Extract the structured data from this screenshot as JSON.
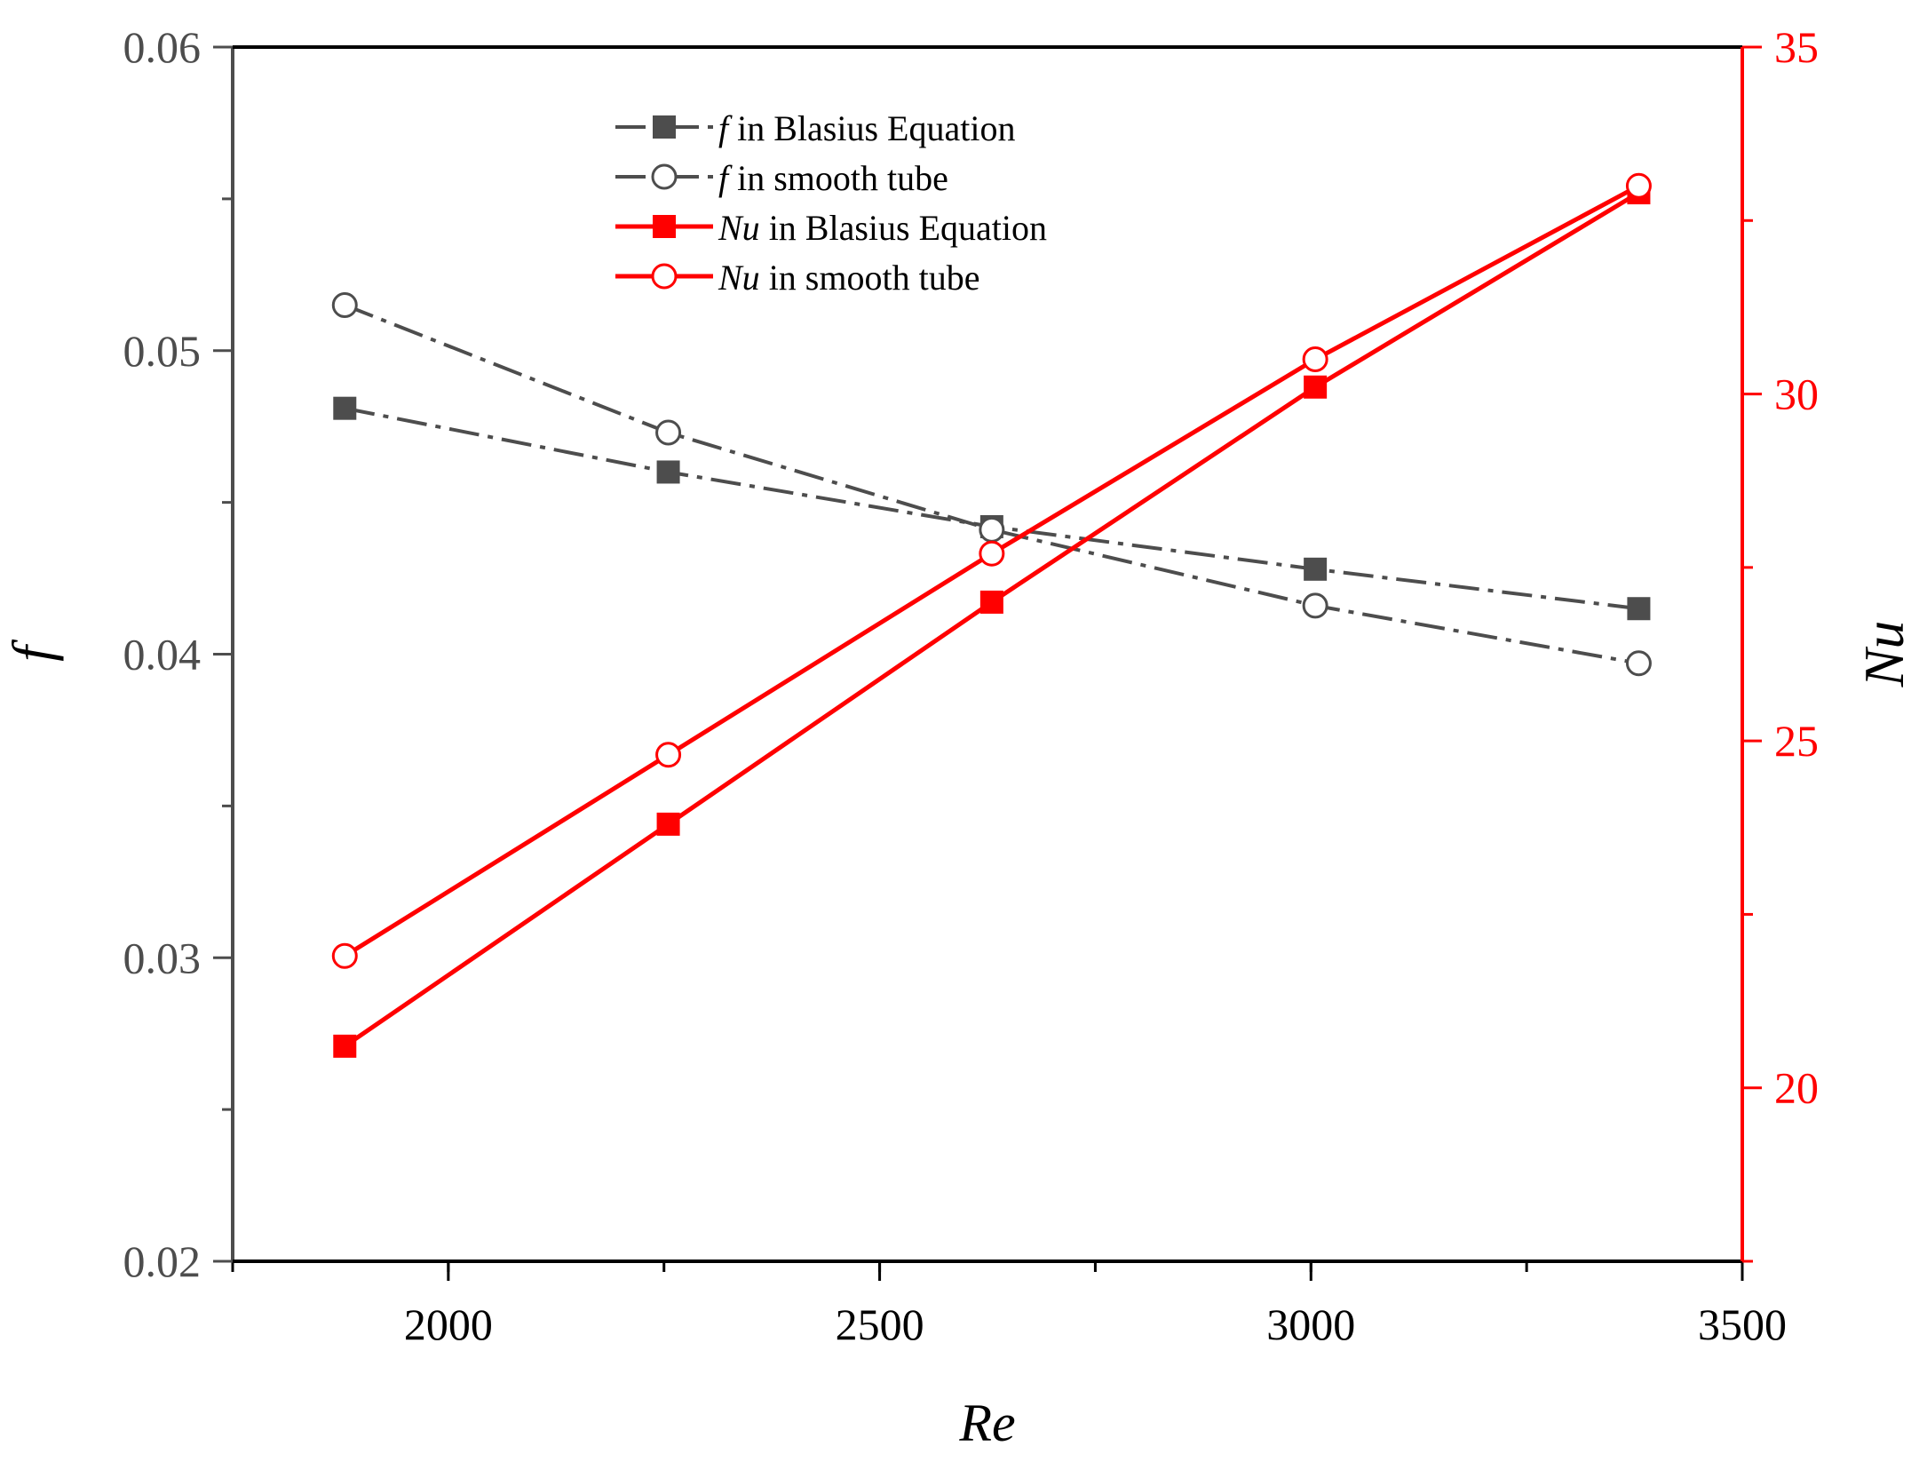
{
  "chart_data": {
    "type": "line",
    "title": "",
    "xlabel": "Re",
    "ylabel_left": "f",
    "ylabel_right": "Nu",
    "x": [
      1880,
      2255,
      2630,
      3005,
      3380
    ],
    "xlim": [
      1750,
      3500
    ],
    "ylim_left": [
      0.02,
      0.06
    ],
    "ylim_right": [
      17.5,
      35
    ],
    "x_ticks": [
      "2000",
      "2500",
      "3000",
      "3500"
    ],
    "y_left_ticks": [
      "0.02",
      "0.03",
      "0.04",
      "0.05",
      "0.06"
    ],
    "y_right_ticks": [
      "20",
      "25",
      "30",
      "35"
    ],
    "grid": false,
    "legend_position": "top-center",
    "series": [
      {
        "name": "f in Blasius Equation",
        "legend_symbol": "f",
        "legend_rest": " in Blasius Equation",
        "axis": "left",
        "marker": "filled-square",
        "line": "dash-dot",
        "color": "#4d4d4d",
        "values": [
          0.0481,
          0.046,
          0.0442,
          0.0428,
          0.0415
        ]
      },
      {
        "name": "f in smooth tube",
        "legend_symbol": "f",
        "legend_rest": " in smooth tube",
        "axis": "left",
        "marker": "open-circle",
        "line": "dash-dot",
        "color": "#4d4d4d",
        "values": [
          0.0515,
          0.0473,
          0.0441,
          0.0416,
          0.0397
        ]
      },
      {
        "name": "Nu in Blasius Equation",
        "legend_symbol": "Nu",
        "legend_rest": " in Blasius Equation",
        "axis": "right",
        "marker": "filled-square",
        "line": "solid",
        "color": "#ff0000",
        "values": [
          20.6,
          23.8,
          27.0,
          30.1,
          32.9
        ]
      },
      {
        "name": "Nu in smooth tube",
        "legend_symbol": "Nu",
        "legend_rest": " in smooth tube",
        "axis": "right",
        "marker": "open-circle",
        "line": "solid",
        "color": "#ff0000",
        "values": [
          21.9,
          24.8,
          27.7,
          30.5,
          33.0
        ]
      }
    ]
  }
}
